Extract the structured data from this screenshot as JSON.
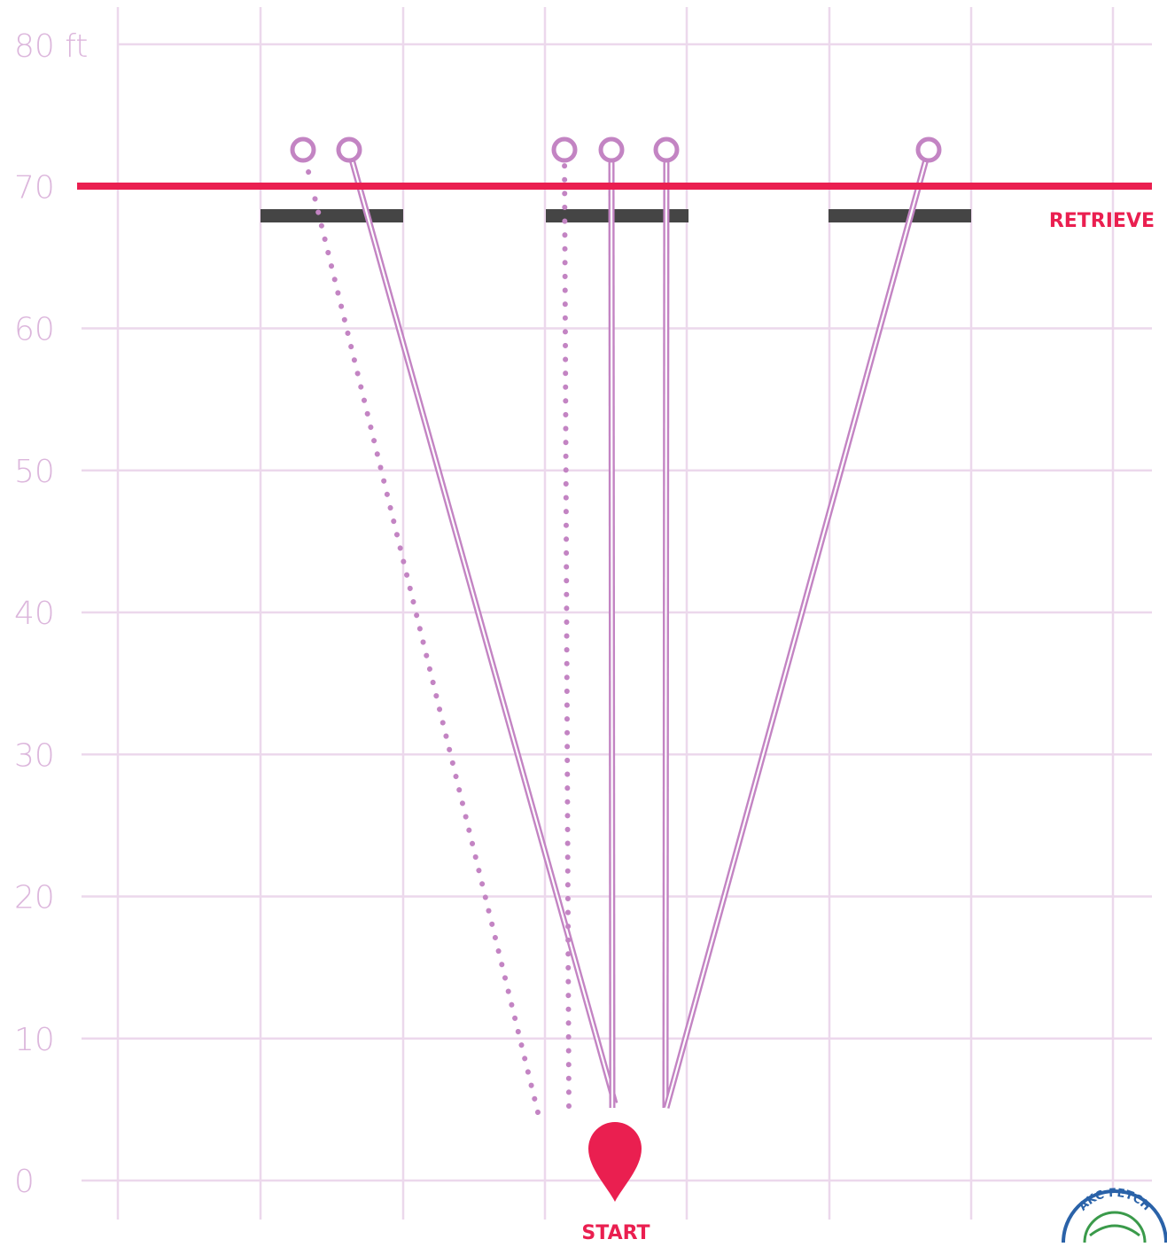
{
  "diagram": {
    "colors": {
      "grid": "#ecd8ec",
      "axis_text": "#dcb6dc",
      "retrieve_line": "#ea1f50",
      "path": "#c384c3",
      "gate": "#454545",
      "start_marker": "#ea1f50",
      "label_text": "#ea1f50"
    },
    "y_axis": {
      "unit_label": "80 ft",
      "ticks": [
        "0",
        "10",
        "20",
        "30",
        "40",
        "50",
        "60",
        "70"
      ]
    },
    "retrieve": {
      "label": "RETRIEVE",
      "distance_ft": 70
    },
    "start": {
      "label": "START",
      "distance_ft": 0,
      "icon": "map-pin-icon"
    },
    "gates": [
      {
        "name": "left-gate",
        "distance_ft": 68
      },
      {
        "name": "center-gate",
        "distance_ft": 68
      },
      {
        "name": "right-gate",
        "distance_ft": 68
      }
    ],
    "paths": [
      {
        "name": "left-outer-dotted",
        "style": "dotted"
      },
      {
        "name": "left-inner-double",
        "style": "double"
      },
      {
        "name": "center-left-dotted",
        "style": "dotted"
      },
      {
        "name": "center-double",
        "style": "double"
      },
      {
        "name": "center-right-double",
        "style": "double"
      },
      {
        "name": "right-double",
        "style": "double"
      }
    ],
    "logo": {
      "text": "AKC FETCH"
    }
  }
}
